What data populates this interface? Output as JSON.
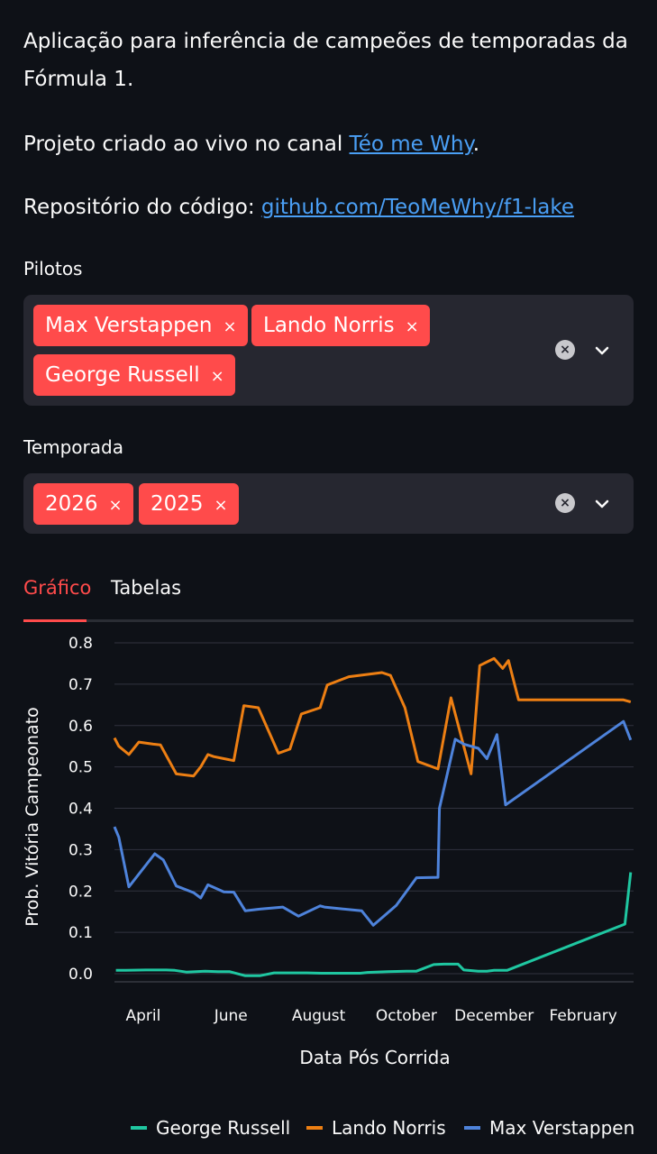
{
  "intro": {
    "description": "Aplicação para inferência de campeões de temporadas da Fórmula 1.",
    "project_prefix": "Projeto criado ao vivo no canal ",
    "project_link": "Téo me Why",
    "project_suffix": ".",
    "repo_prefix": "Repositório do código: ",
    "repo_link": "github.com/TeoMeWhy/f1-lake"
  },
  "pilots_filter": {
    "label": "Pilotos",
    "selected": [
      "Max Verstappen",
      "Lando Norris",
      "George Russell"
    ],
    "remove_glyph": "×",
    "clear_icon": "clear-all-icon",
    "dropdown_icon": "chevron-down-icon"
  },
  "season_filter": {
    "label": "Temporada",
    "selected": [
      "2026",
      "2025"
    ],
    "remove_glyph": "×",
    "clear_icon": "clear-all-icon",
    "dropdown_icon": "chevron-down-icon"
  },
  "tabs": {
    "items": [
      "Gráfico",
      "Tabelas"
    ],
    "active": "Gráfico",
    "active_color": "#ff4b4b"
  },
  "chart_data": {
    "type": "line",
    "xlabel": "Data Pós Corrida",
    "ylabel": "Prob. Vitória Campeonato",
    "y_ticks": [
      "0.0",
      "0.1",
      "0.2",
      "0.3",
      "0.4",
      "0.5",
      "0.6",
      "0.7",
      "0.8"
    ],
    "ylim": [
      0,
      0.8
    ],
    "x_ticks": [
      "April",
      "June",
      "August",
      "October",
      "December",
      "February"
    ],
    "xlim": [
      "2025-03-12",
      "2026-03-08"
    ],
    "grid": true,
    "legend_position": "bottom",
    "series": [
      {
        "name": "George Russell",
        "color": "#1fc7a1",
        "x": [
          "2025-03-13",
          "2025-03-20",
          "2025-04-03",
          "2025-04-17",
          "2025-04-23",
          "2025-05-01",
          "2025-05-14",
          "2025-05-23",
          "2025-05-31",
          "2025-06-11",
          "2025-06-21",
          "2025-07-01",
          "2025-07-12",
          "2025-07-24",
          "2025-08-03",
          "2025-08-30",
          "2025-09-04",
          "2025-09-18",
          "2025-10-01",
          "2025-10-08",
          "2025-10-20",
          "2025-10-27",
          "2025-11-06",
          "2025-11-10",
          "2025-11-20",
          "2025-11-26",
          "2025-12-01",
          "2025-12-10",
          "2026-03-02",
          "2026-03-06"
        ],
        "values": [
          0.008,
          0.008,
          0.009,
          0.009,
          0.008,
          0.004,
          0.006,
          0.005,
          0.005,
          -0.005,
          -0.005,
          0.002,
          0.002,
          0.002,
          0.001,
          0.001,
          0.003,
          0.005,
          0.006,
          0.006,
          0.022,
          0.023,
          0.023,
          0.009,
          0.006,
          0.006,
          0.008,
          0.008,
          0.12,
          0.245
        ]
      },
      {
        "name": "Lando Norris",
        "color": "#ed7f13",
        "x": [
          "2025-03-12",
          "2025-03-15",
          "2025-03-22",
          "2025-03-29",
          "2025-04-08",
          "2025-04-13",
          "2025-04-24",
          "2025-05-06",
          "2025-05-11",
          "2025-05-16",
          "2025-05-20",
          "2025-06-03",
          "2025-06-10",
          "2025-06-20",
          "2025-07-04",
          "2025-07-12",
          "2025-07-20",
          "2025-08-02",
          "2025-08-07",
          "2025-08-22",
          "2025-09-14",
          "2025-09-20",
          "2025-09-30",
          "2025-10-09",
          "2025-10-23",
          "2025-11-01",
          "2025-11-15",
          "2025-11-21",
          "2025-12-01",
          "2025-12-07",
          "2025-12-11",
          "2025-12-18",
          "2026-03-01",
          "2026-03-06"
        ],
        "values": [
          0.57,
          0.55,
          0.53,
          0.56,
          0.555,
          0.553,
          0.483,
          0.478,
          0.5,
          0.53,
          0.525,
          0.515,
          0.648,
          0.643,
          0.533,
          0.543,
          0.628,
          0.643,
          0.698,
          0.718,
          0.728,
          0.721,
          0.643,
          0.513,
          0.495,
          0.667,
          0.483,
          0.745,
          0.762,
          0.738,
          0.757,
          0.662,
          0.662,
          0.657
        ]
      },
      {
        "name": "Max Verstappen",
        "color": "#4e83db",
        "x": [
          "2025-03-12",
          "2025-03-15",
          "2025-03-22",
          "2025-04-09",
          "2025-04-15",
          "2025-04-24",
          "2025-05-06",
          "2025-05-11",
          "2025-05-16",
          "2025-05-27",
          "2025-06-03",
          "2025-06-11",
          "2025-06-21",
          "2025-07-07",
          "2025-07-18",
          "2025-08-02",
          "2025-08-05",
          "2025-08-31",
          "2025-09-08",
          "2025-09-24",
          "2025-10-08",
          "2025-10-23",
          "2025-10-24",
          "2025-11-04",
          "2025-11-10",
          "2025-11-20",
          "2025-11-26",
          "2025-12-03",
          "2025-12-09",
          "2026-03-01",
          "2026-03-06"
        ],
        "values": [
          0.355,
          0.33,
          0.21,
          0.29,
          0.275,
          0.212,
          0.196,
          0.183,
          0.215,
          0.198,
          0.197,
          0.152,
          0.156,
          0.161,
          0.139,
          0.164,
          0.161,
          0.152,
          0.117,
          0.165,
          0.232,
          0.233,
          0.4,
          0.567,
          0.555,
          0.545,
          0.52,
          0.578,
          0.408,
          0.61,
          0.565
        ]
      }
    ]
  }
}
